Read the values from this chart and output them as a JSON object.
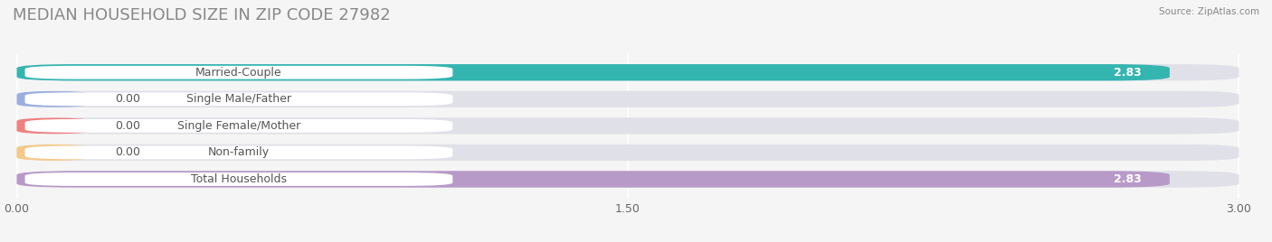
{
  "title": "MEDIAN HOUSEHOLD SIZE IN ZIP CODE 27982",
  "source": "Source: ZipAtlas.com",
  "categories": [
    "Married-Couple",
    "Single Male/Father",
    "Single Female/Mother",
    "Non-family",
    "Total Households"
  ],
  "values": [
    2.83,
    0.0,
    0.0,
    0.0,
    2.83
  ],
  "bar_colors": [
    "#34b5b0",
    "#9baee0",
    "#f08080",
    "#f5c98a",
    "#b89ac8"
  ],
  "bar_bg_color": "#e0e0e8",
  "xlim_max": 3.0,
  "xticks": [
    0.0,
    1.5,
    3.0
  ],
  "xtick_labels": [
    "0.00",
    "1.50",
    "3.00"
  ],
  "value_labels": [
    "2.83",
    "0.00",
    "0.00",
    "0.00",
    "2.83"
  ],
  "title_fontsize": 13,
  "tick_fontsize": 9,
  "bar_label_fontsize": 9,
  "value_fontsize": 9,
  "background_color": "#f5f5f5",
  "bar_height": 0.62,
  "grid_color": "#ffffff",
  "label_box_color": "#ffffff",
  "label_text_color": "#555555",
  "zero_bar_width": 0.18
}
